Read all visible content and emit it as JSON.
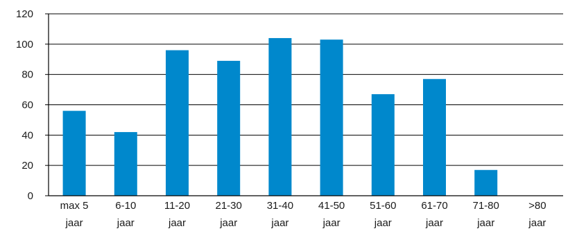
{
  "chart_data": {
    "type": "bar",
    "categories": [
      [
        "max 5",
        "jaar"
      ],
      [
        "6-10",
        "jaar"
      ],
      [
        "11-20",
        "jaar"
      ],
      [
        "21-30",
        "jaar"
      ],
      [
        "31-40",
        "jaar"
      ],
      [
        "41-50",
        "jaar"
      ],
      [
        "51-60",
        "jaar"
      ],
      [
        "61-70",
        "jaar"
      ],
      [
        "71-80",
        "jaar"
      ],
      [
        ">80",
        "jaar"
      ]
    ],
    "values": [
      56,
      42,
      96,
      89,
      104,
      103,
      67,
      77,
      17,
      0
    ],
    "title": "",
    "xlabel": "",
    "ylabel": "",
    "ylim": [
      0,
      120
    ],
    "yticks": [
      0,
      20,
      40,
      60,
      80,
      100,
      120
    ],
    "grid": true,
    "bar_color": "#0088cc",
    "grid_color": "#000000"
  }
}
